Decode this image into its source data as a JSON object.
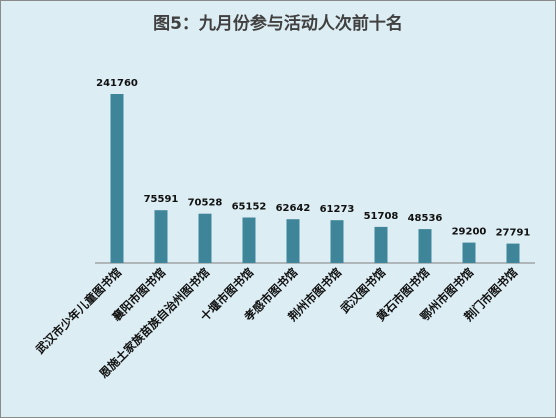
{
  "chart_data": {
    "type": "bar",
    "title": "图5：九月份参与活动人次前十名",
    "categories": [
      "武汉市少年儿童图书馆",
      "襄阳市图书馆",
      "恩施土家族苗族自治州图书馆",
      "十堰市图书馆",
      "孝感市图书馆",
      "荆州市图书馆",
      "武汉图书馆",
      "黄石市图书馆",
      "鄂州市图书馆",
      "荆门市图书馆"
    ],
    "values": [
      241760,
      75591,
      70528,
      65152,
      62642,
      61273,
      51708,
      48536,
      29200,
      27791
    ],
    "ylim": [
      0,
      241760
    ],
    "grid": false,
    "colors": {
      "bar": "#3f8599",
      "axis": "#7f7f7f",
      "background": "#dcedf3"
    }
  }
}
